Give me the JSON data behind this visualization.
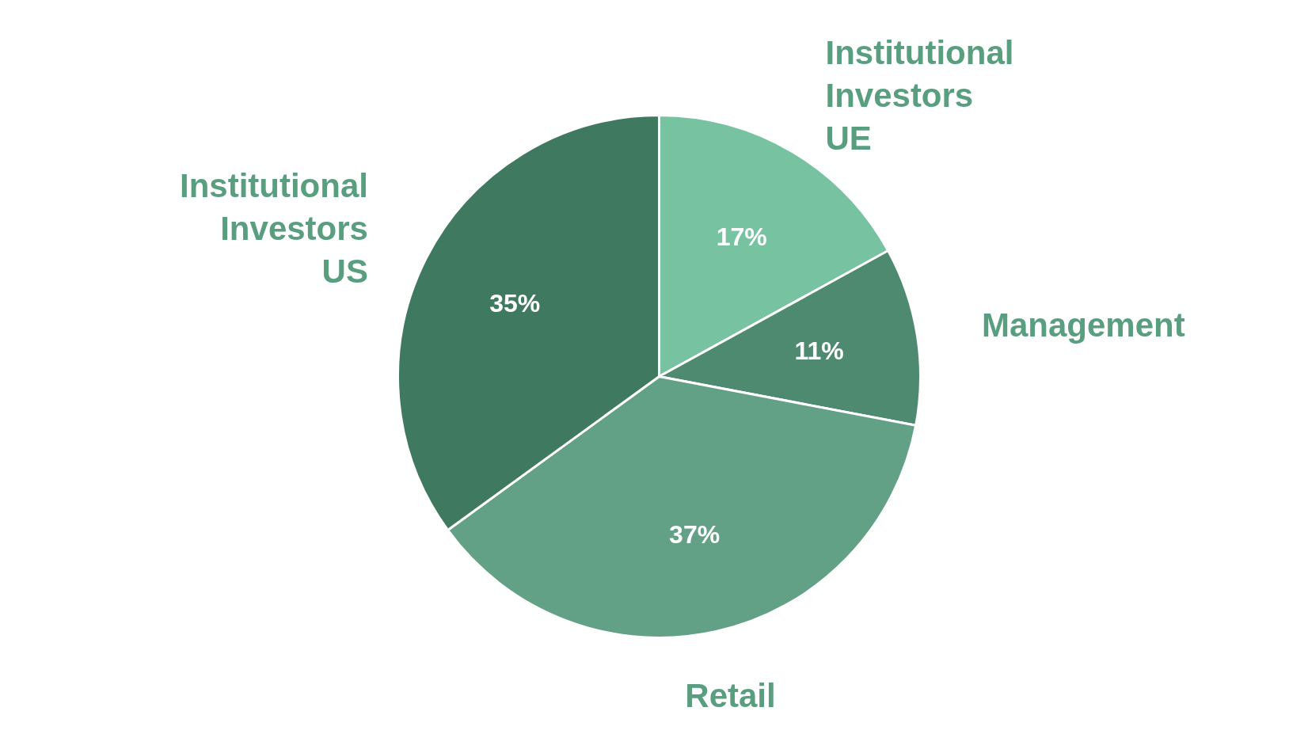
{
  "chart_data": {
    "type": "pie",
    "categories": [
      "Institutional Investors UE",
      "Management",
      "Retail",
      "Institutional Investors US"
    ],
    "values": [
      17,
      11,
      37,
      35
    ],
    "colors": [
      "#77c2a0",
      "#4e8a70",
      "#62a186",
      "#3f7a60"
    ],
    "value_labels": [
      "17%",
      "11%",
      "37%",
      "35%"
    ]
  }
}
